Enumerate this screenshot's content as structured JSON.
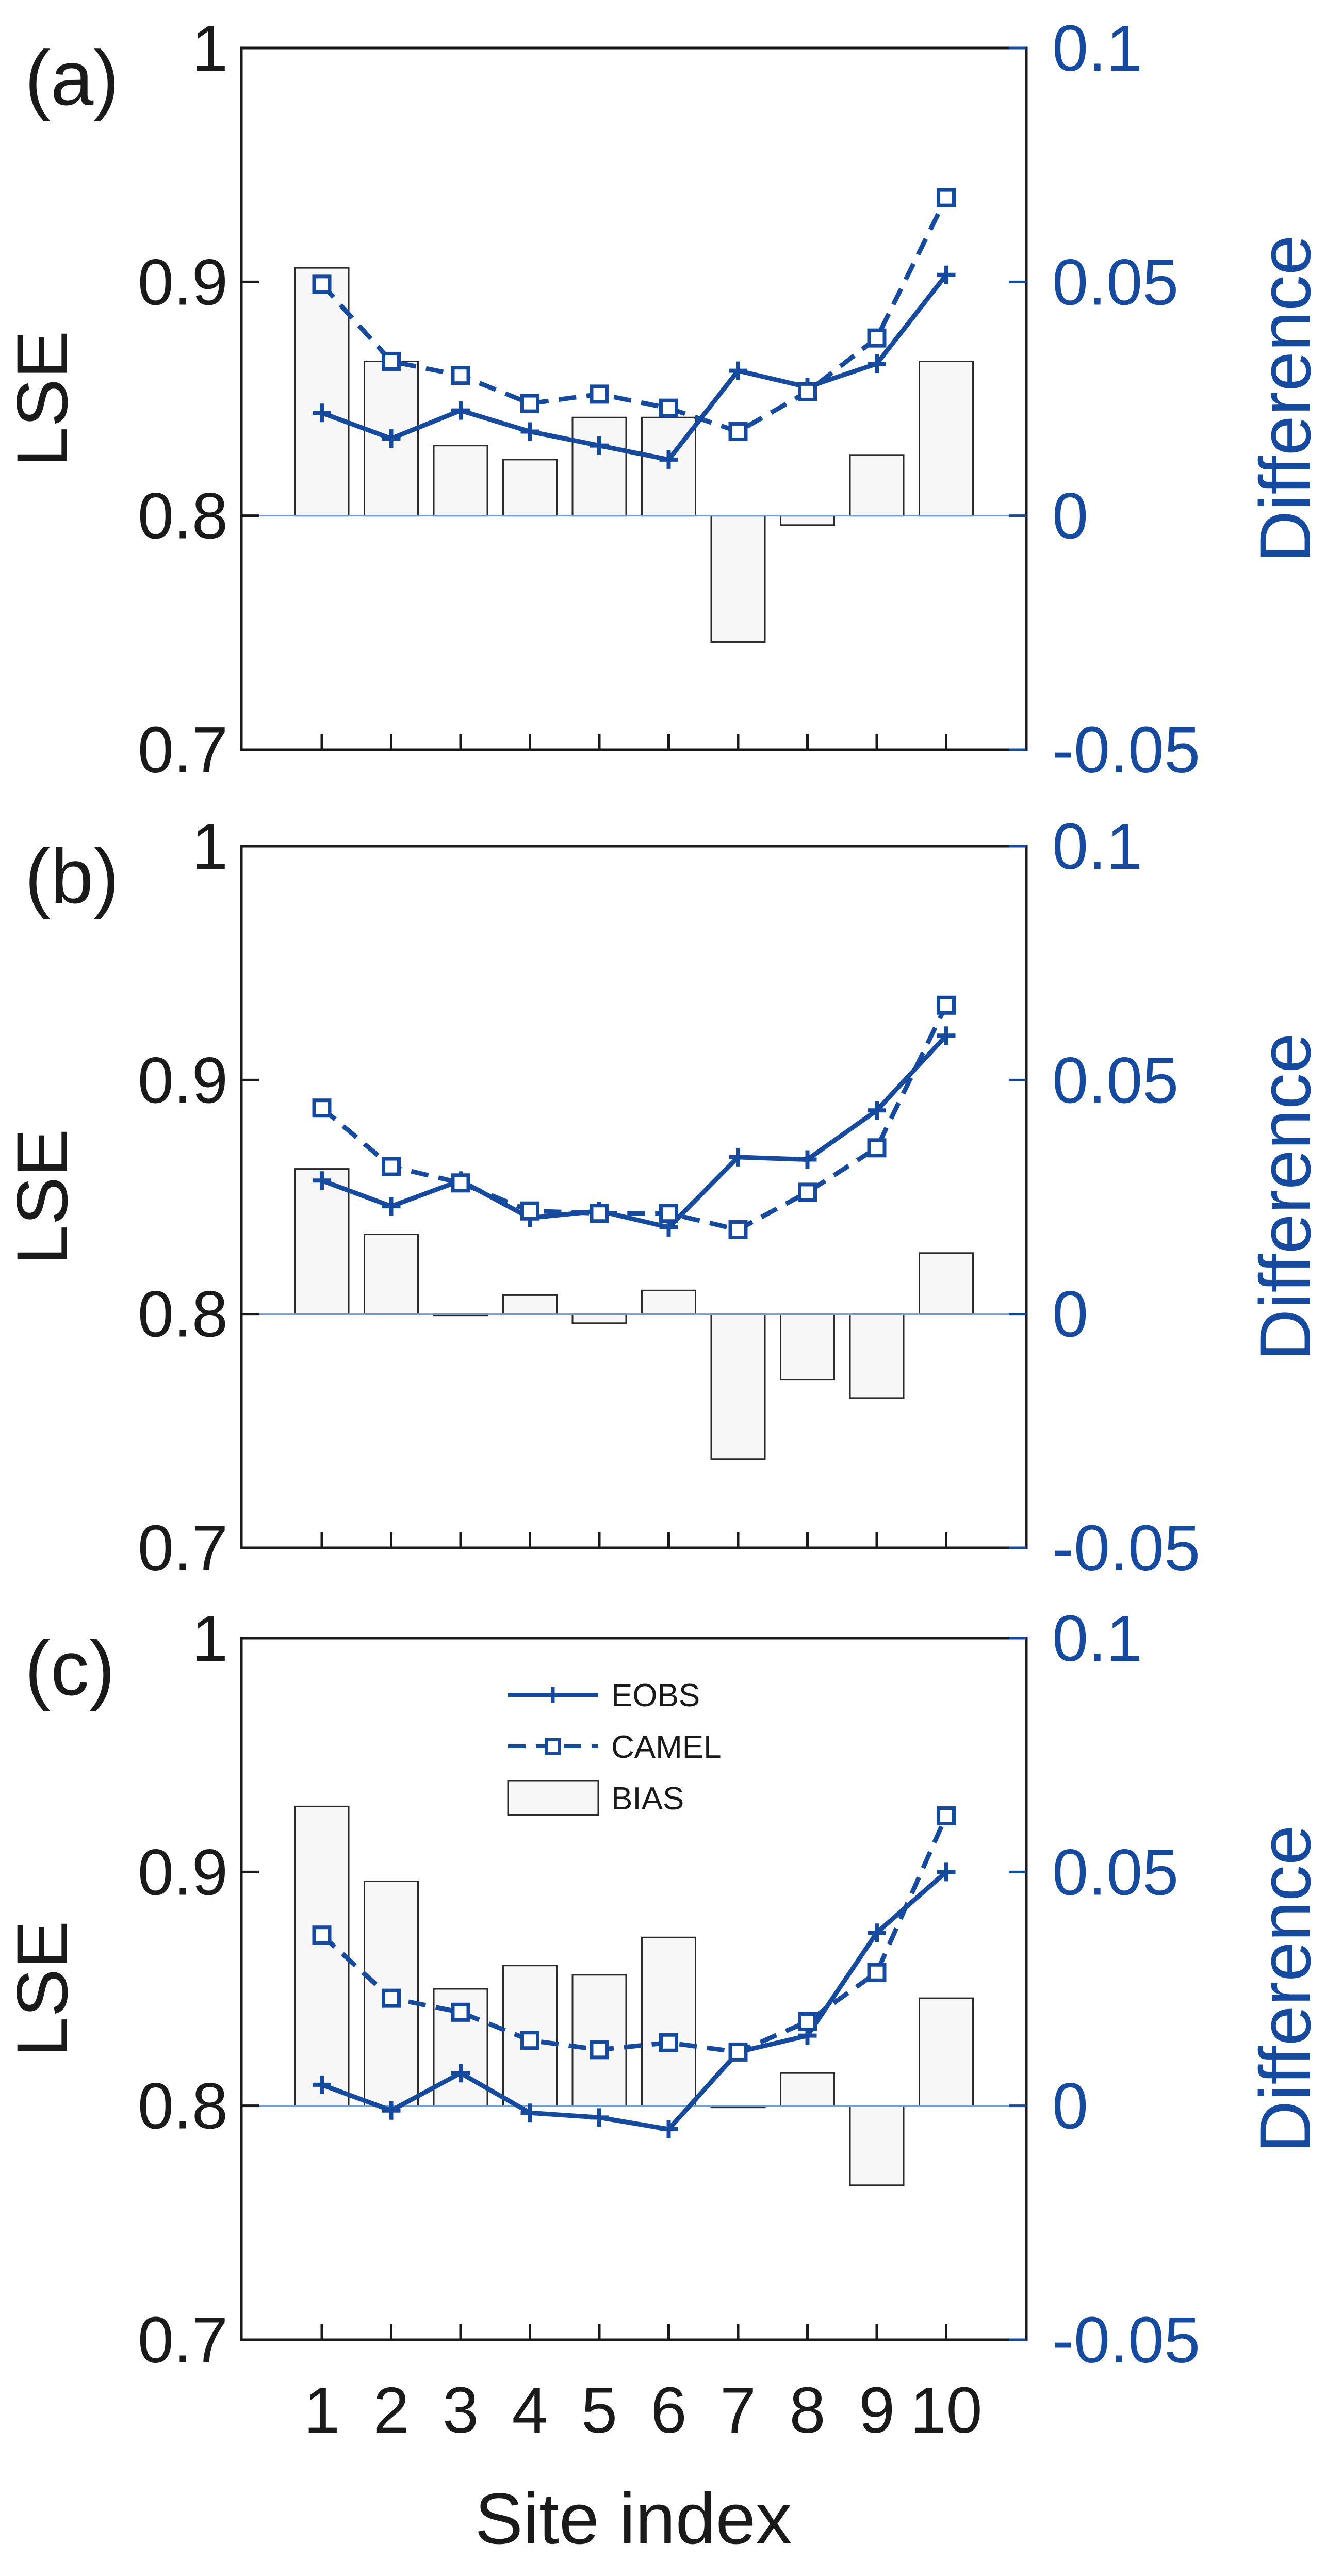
{
  "colors": {
    "blue": "#164a9e",
    "axis": "#1a1a1a",
    "bar_fill": "#f7f7f7",
    "zero_line": "#6f9fd8"
  },
  "chart_data": [
    {
      "type": "bar",
      "panel_label": "(a)",
      "title": "",
      "categories": [
        "1",
        "2",
        "3",
        "4",
        "5",
        "6",
        "7",
        "8",
        "9",
        "10"
      ],
      "xlabel": "Site index",
      "ylabel": "LSE",
      "y2label": "Difference",
      "ylim": [
        0.7,
        1
      ],
      "y2lim": [
        -0.05,
        0.1
      ],
      "yticks": [
        "0.7",
        "0.8",
        "0.9",
        "1"
      ],
      "y2ticks": [
        "-0.05",
        "0",
        "0.05",
        "0.1"
      ],
      "series": [
        {
          "name": "EOBS",
          "kind": "line",
          "style": "solid",
          "marker": "plus",
          "axis": "left",
          "values": [
            0.844,
            0.833,
            0.845,
            0.836,
            0.83,
            0.824,
            0.862,
            0.855,
            0.865,
            0.903
          ]
        },
        {
          "name": "CAMEL",
          "kind": "line",
          "style": "dashed",
          "marker": "square",
          "axis": "left",
          "values": [
            0.899,
            0.866,
            0.86,
            0.848,
            0.852,
            0.846,
            0.836,
            0.853,
            0.876,
            0.936
          ]
        },
        {
          "name": "BIAS",
          "kind": "bar",
          "axis": "right",
          "values": [
            0.053,
            0.033,
            0.015,
            0.012,
            0.021,
            0.021,
            -0.027,
            -0.002,
            0.013,
            0.033
          ]
        }
      ]
    },
    {
      "type": "bar",
      "panel_label": "(b)",
      "title": "",
      "categories": [
        "1",
        "2",
        "3",
        "4",
        "5",
        "6",
        "7",
        "8",
        "9",
        "10"
      ],
      "xlabel": "Site index",
      "ylabel": "LSE",
      "y2label": "Difference",
      "ylim": [
        0.7,
        1
      ],
      "y2lim": [
        -0.05,
        0.1
      ],
      "yticks": [
        "0.7",
        "0.8",
        "0.9",
        "1"
      ],
      "y2ticks": [
        "-0.05",
        "0",
        "0.05",
        "0.1"
      ],
      "series": [
        {
          "name": "EOBS",
          "kind": "line",
          "style": "solid",
          "marker": "plus",
          "axis": "left",
          "values": [
            0.857,
            0.846,
            0.857,
            0.841,
            0.844,
            0.837,
            0.867,
            0.866,
            0.887,
            0.919
          ]
        },
        {
          "name": "CAMEL",
          "kind": "line",
          "style": "dashed",
          "marker": "square",
          "axis": "left",
          "values": [
            0.888,
            0.863,
            0.856,
            0.844,
            0.843,
            0.843,
            0.836,
            0.852,
            0.871,
            0.932
          ]
        },
        {
          "name": "BIAS",
          "kind": "bar",
          "axis": "right",
          "values": [
            0.031,
            0.017,
            0.0,
            0.004,
            -0.002,
            0.005,
            -0.031,
            -0.014,
            -0.018,
            0.013
          ]
        }
      ]
    },
    {
      "type": "bar",
      "panel_label": "(c)",
      "title": "",
      "categories": [
        "1",
        "2",
        "3",
        "4",
        "5",
        "6",
        "7",
        "8",
        "9",
        "10"
      ],
      "xlabel": "Site index",
      "ylabel": "LSE",
      "y2label": "Difference",
      "ylim": [
        0.7,
        1
      ],
      "y2lim": [
        -0.05,
        0.1
      ],
      "yticks": [
        "0.7",
        "0.8",
        "0.9",
        "1"
      ],
      "y2ticks": [
        "-0.05",
        "0",
        "0.05",
        "0.1"
      ],
      "legend": {
        "position": "top-center",
        "labels": [
          "EOBS",
          "CAMEL",
          "BIAS"
        ]
      },
      "series": [
        {
          "name": "EOBS",
          "kind": "line",
          "style": "solid",
          "marker": "plus",
          "axis": "left",
          "values": [
            0.809,
            0.798,
            0.814,
            0.797,
            0.795,
            0.79,
            0.823,
            0.83,
            0.874,
            0.9
          ]
        },
        {
          "name": "CAMEL",
          "kind": "line",
          "style": "dashed",
          "marker": "square",
          "axis": "left",
          "values": [
            0.873,
            0.846,
            0.84,
            0.828,
            0.824,
            0.827,
            0.823,
            0.836,
            0.857,
            0.924
          ]
        },
        {
          "name": "BIAS",
          "kind": "bar",
          "axis": "right",
          "values": [
            0.064,
            0.048,
            0.025,
            0.03,
            0.028,
            0.036,
            0.0,
            0.007,
            -0.017,
            0.023
          ]
        }
      ]
    }
  ]
}
